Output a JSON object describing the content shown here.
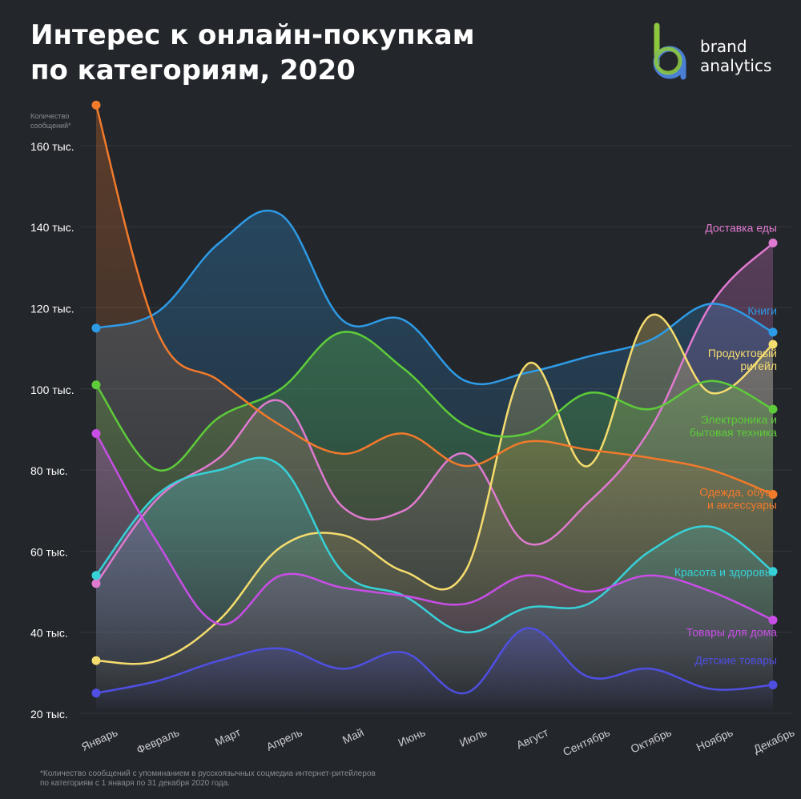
{
  "header": {
    "title_line1": "Интерес к онлайн-покупкам",
    "title_line2": "по категориям, 2020"
  },
  "logo": {
    "line1": "brand",
    "line2": "analytics",
    "colors": {
      "green": "#8dc63f",
      "blue": "#4a7fd4"
    }
  },
  "footnote": {
    "line1": "*Количество сообщений с упоминанием в русскоязычных соцмедиа интернет-ритейлеров",
    "line2": "по категориям с 1 января по 31 декабря 2020 года."
  },
  "chart_data": {
    "type": "line",
    "title": "Интерес к онлайн-покупкам по категориям, 2020",
    "ylabel_line1": "Количество",
    "ylabel_line2": "сообщений*",
    "ylim": [
      20,
      175
    ],
    "yticks": [
      20,
      40,
      60,
      80,
      100,
      120,
      140,
      160
    ],
    "ytick_labels": [
      "20 тыс.",
      "40 тыс.",
      "60 тыс.",
      "80 тыс.",
      "100 тыс.",
      "120 тыс.",
      "140 тыс.",
      "160 тыс."
    ],
    "categories": [
      "Январь",
      "Февраль",
      "Март",
      "Апрель",
      "Май",
      "Июнь",
      "Июль",
      "Август",
      "Сентябрь",
      "Октябрь",
      "Ноябрь",
      "Декабрь"
    ],
    "grid": true,
    "legend": "labels at line ends (right)",
    "series": [
      {
        "name": "Доставка еды",
        "color": "#e07ad0",
        "values": [
          52,
          73,
          83,
          97,
          71,
          70,
          84,
          62,
          72,
          90,
          121,
          136
        ]
      },
      {
        "name": "Книги",
        "color": "#2e9be6",
        "values": [
          115,
          119,
          136,
          143,
          117,
          117,
          102,
          104,
          108,
          112,
          121,
          114
        ]
      },
      {
        "name": "Продуктовый ритейл",
        "color": "#f5dc6e",
        "values": [
          33,
          33,
          43,
          61,
          64,
          55,
          55,
          106,
          81,
          118,
          99,
          111
        ]
      },
      {
        "name": "Электроника и бытовая техника",
        "color": "#5ecb3a",
        "values": [
          101,
          80,
          93,
          100,
          114,
          105,
          91,
          89,
          99,
          95,
          102,
          95
        ]
      },
      {
        "name": "Одежда, обувь и аксессуары",
        "color": "#f27a2b",
        "values": [
          170,
          114,
          102,
          91,
          84,
          89,
          81,
          87,
          85,
          83,
          80,
          74
        ]
      },
      {
        "name": "Красота и здоровье",
        "color": "#37d1d8",
        "values": [
          54,
          74,
          80,
          81,
          55,
          49,
          40,
          46,
          47,
          60,
          66,
          55
        ]
      },
      {
        "name": "Товары для дома",
        "color": "#c84ee6",
        "values": [
          89,
          62,
          42,
          54,
          51,
          49,
          47,
          54,
          50,
          54,
          50,
          43
        ]
      },
      {
        "name": "Детские товары",
        "color": "#4f4fe2",
        "values": [
          25,
          28,
          33,
          36,
          31,
          35,
          25,
          41,
          29,
          31,
          26,
          27
        ]
      }
    ],
    "end_labels": [
      {
        "line1": "Доставка еды",
        "line2": ""
      },
      {
        "line1": "Книги",
        "line2": ""
      },
      {
        "line1": "Продуктовый",
        "line2": "ритейл"
      },
      {
        "line1": "Электроника и",
        "line2": "бытовая техника"
      },
      {
        "line1": "Одежда, обувь",
        "line2": "и аксессуары"
      },
      {
        "line1": "Красота и здоровье",
        "line2": ""
      },
      {
        "line1": "Товары для дома",
        "line2": ""
      },
      {
        "line1": "Детские товары",
        "line2": ""
      }
    ]
  }
}
